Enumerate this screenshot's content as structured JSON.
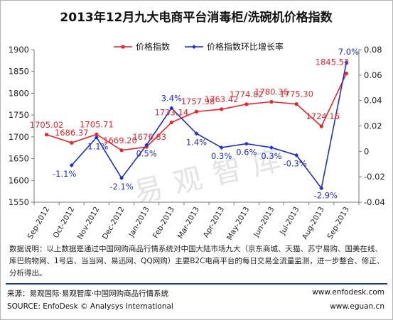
{
  "chart_data": {
    "type": "line",
    "title": "2013年12月九大电商平台消毒柜/洗碗机价格指数",
    "categories": [
      "Sep-2012",
      "Oct-2012",
      "Nov-2012",
      "Dec-2012",
      "Jan-2013",
      "Feb-2013",
      "Mar-2013",
      "Apr-2013",
      "May-2013",
      "Jun-2013",
      "Jul-2013",
      "Aug-2013",
      "Sep-2013"
    ],
    "series": [
      {
        "name": "价格指数",
        "axis": "left",
        "color": "#e8262c",
        "values": [
          1705.02,
          1686.37,
          1705.71,
          1669.2,
          1676.83,
          1733.14,
          1757.98,
          1763.42,
          1774.82,
          1780.36,
          1775.3,
          1724.16,
          1845.53
        ],
        "labels": [
          "1705.02",
          "1686.37",
          "1705.71",
          "1669.20",
          "1676.83",
          "1733.14",
          "1757.98",
          "1763.42",
          "1774.82",
          "1780.36",
          "1775.30",
          "1724.16",
          "1845.53"
        ]
      },
      {
        "name": "价格指数环比增长率",
        "axis": "right",
        "color": "#1f2fcf",
        "values": [
          null,
          -0.011,
          0.011,
          -0.021,
          0.005,
          0.034,
          0.014,
          0.003,
          0.006,
          0.003,
          -0.003,
          -0.029,
          0.07
        ],
        "labels": [
          "",
          "-1.1%",
          "1.1%",
          "-2.1%",
          "0.5%",
          "3.4%",
          "1.4%",
          "0.3%",
          "0.6%",
          "0.3%",
          "-0.3%",
          "-2.9%",
          "7.0%"
        ]
      }
    ],
    "y_left": {
      "ylim": [
        1550,
        1900
      ],
      "ticks": [
        "1550",
        "1600",
        "1650",
        "1700",
        "1750",
        "1800",
        "1850",
        "1900"
      ]
    },
    "y_right": {
      "ylim": [
        -0.04,
        0.08
      ],
      "ticks": [
        "-0.04",
        "-0.02",
        "0",
        "0.02",
        "0.04",
        "0.06",
        "0.08"
      ]
    },
    "grid": false,
    "legend_position": "top"
  },
  "watermark": "易观智库",
  "note": "数据说明：以上数据是通过中国网购商品行情系统对中国大陆市场九大（京东商城、天猫、苏宁易购、国美在线、库巴购物网、1号店、当当网、易迅网、QQ网购）主要B2C电商平台的每日交易全流量监测，进一步整合、修正、分析得出。",
  "source_cn": "来源：易观国际·易观智库·中国网购商品行情系统",
  "source_en": "SOURCE: EnfoDesk © Analysys International",
  "site_1": "www.enfodesk.com",
  "site_2": "www.eguan.cn"
}
